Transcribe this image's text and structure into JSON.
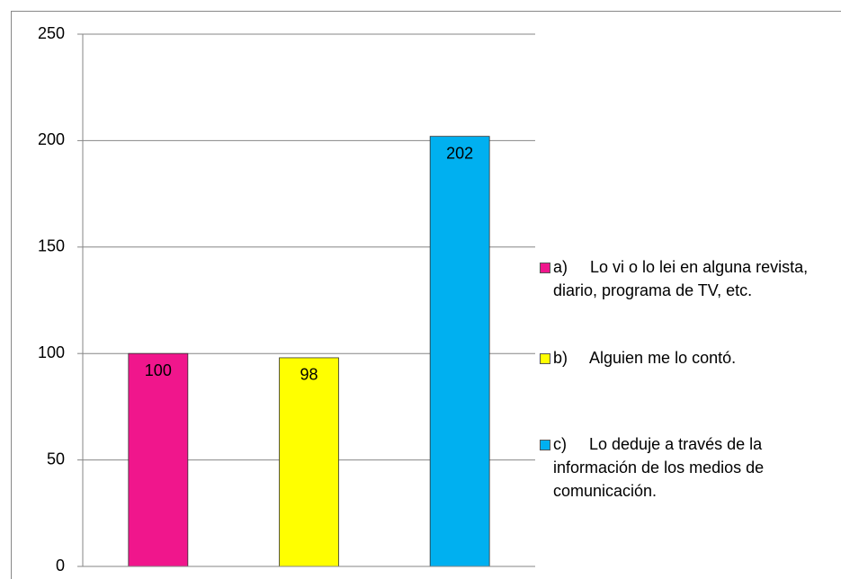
{
  "chart_data": {
    "type": "bar",
    "series": [
      {
        "name": "a)     Lo vi o lo lei en alguna revista, diario, programa de TV, etc.",
        "color": "#f0168c",
        "values": [
          100
        ]
      },
      {
        "name": "b)     Alguien me lo contó.",
        "color": "#ffff00",
        "values": [
          98
        ]
      },
      {
        "name": "c)     Lo deduje a través de la información de los medios de comunicación.",
        "color": "#00b0f0",
        "values": [
          202
        ]
      }
    ],
    "ylim": [
      0,
      250
    ],
    "yticks": [
      0,
      50,
      100,
      150,
      200,
      250
    ],
    "grid": true,
    "legend": "right"
  }
}
